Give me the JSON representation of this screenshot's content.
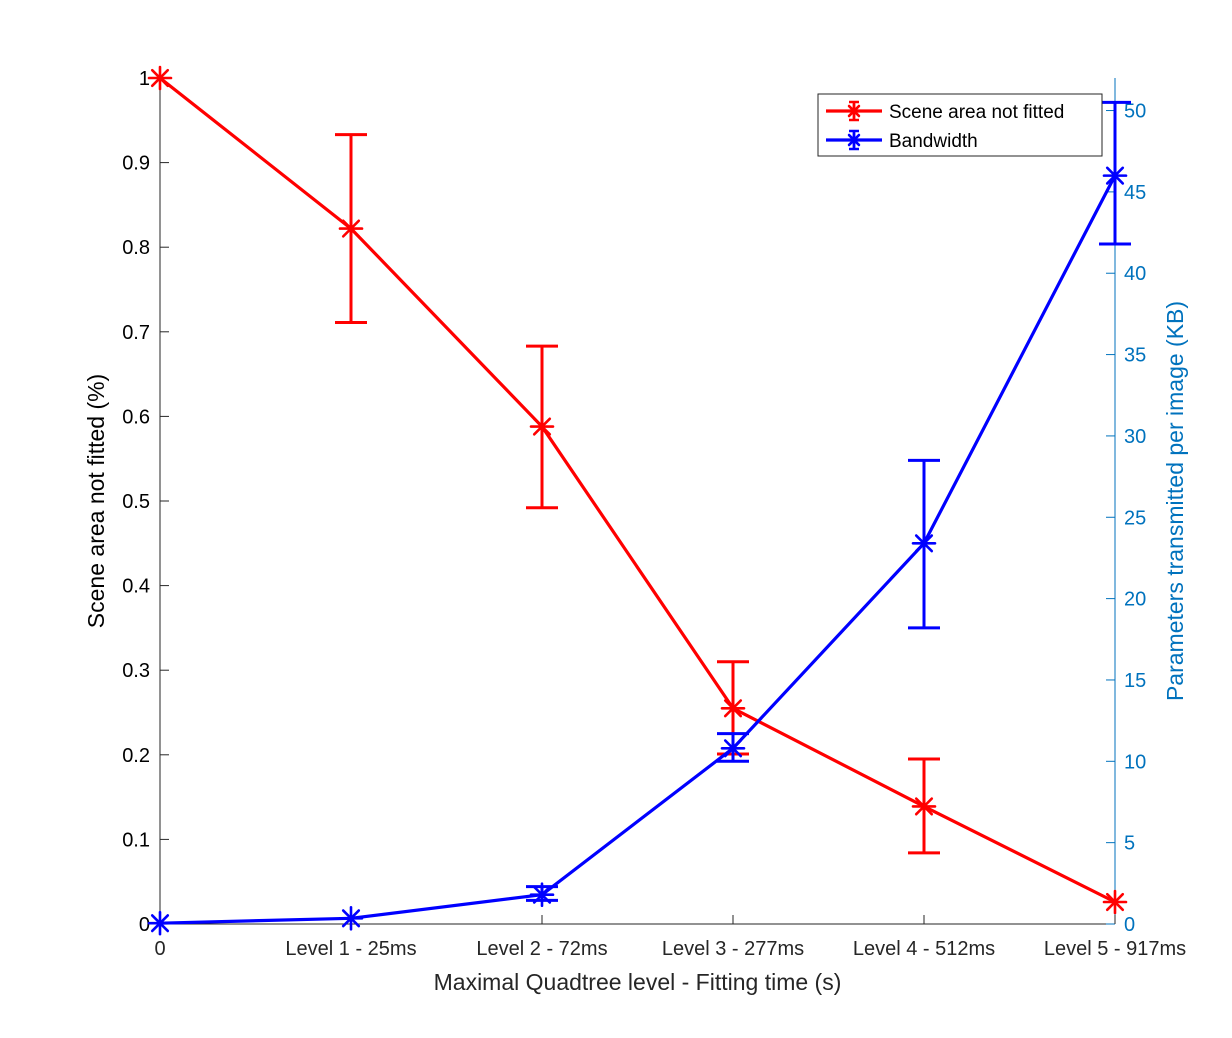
{
  "chart_data": {
    "type": "line",
    "categories": [
      "0",
      "Level 1 - 25ms",
      "Level 2 - 72ms",
      "Level 3 - 277ms",
      "Level 4 - 512ms",
      "Level 5 - 917ms"
    ],
    "xlabel": "Maximal Quadtree level - Fitting time (s)",
    "ylabel_left": "Scene area not fitted (%)",
    "ylabel_right": "Parameters transmitted per image (KB)",
    "ylim_left": [
      0,
      1
    ],
    "ylim_right": [
      0,
      52
    ],
    "yticks_left": [
      "0",
      "0.1",
      "0.2",
      "0.3",
      "0.4",
      "0.5",
      "0.6",
      "0.7",
      "0.8",
      "0.9",
      "1"
    ],
    "yticks_right": [
      "0",
      "5",
      "10",
      "15",
      "20",
      "25",
      "30",
      "35",
      "40",
      "45",
      "50"
    ],
    "legend_position": "top-right",
    "series": [
      {
        "name": "Scene area not fitted",
        "axis": "left",
        "color": "#ff0000",
        "values": [
          1.0,
          0.822,
          0.588,
          0.255,
          0.139,
          0.026
        ],
        "err_low": [
          1.0,
          0.711,
          0.492,
          0.201,
          0.084,
          0.026
        ],
        "err_high": [
          1.0,
          0.933,
          0.683,
          0.31,
          0.195,
          0.026
        ]
      },
      {
        "name": "Bandwidth",
        "axis": "right",
        "color": "#0000ff",
        "values": [
          0.05,
          0.35,
          1.8,
          10.8,
          23.4,
          46.0
        ],
        "err_low": [
          0.05,
          0.35,
          1.45,
          10.0,
          18.2,
          41.8
        ],
        "err_high": [
          0.05,
          0.35,
          2.3,
          11.7,
          28.5,
          50.5
        ]
      }
    ],
    "colors": {
      "right_axis": "#0072bd",
      "left_axis": "#000000"
    }
  }
}
